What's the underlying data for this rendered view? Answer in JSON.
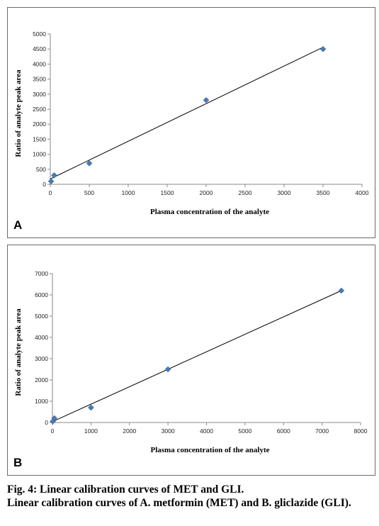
{
  "chart_data": [
    {
      "type": "scatter",
      "panel_label": "A",
      "xlabel": "Plasma concentration of the analyte",
      "ylabel": "Ratio of analyte peak area",
      "xlim": [
        0,
        4000
      ],
      "ylim": [
        0,
        5000
      ],
      "x_ticks": [
        0,
        500,
        1000,
        1500,
        2000,
        2500,
        3000,
        3500,
        4000
      ],
      "y_ticks": [
        0,
        500,
        1000,
        1500,
        2000,
        2500,
        3000,
        3500,
        4000,
        4500,
        5000
      ],
      "grid": false,
      "marker_color": "#4a7ab5",
      "series": [
        {
          "x": [
            10,
            50,
            500,
            2000,
            3500
          ],
          "y": [
            100,
            300,
            700,
            2800,
            4500
          ]
        }
      ],
      "trendline": {
        "x": [
          0,
          3500
        ],
        "y": [
          180,
          4560
        ]
      }
    },
    {
      "type": "scatter",
      "panel_label": "B",
      "xlabel": "Plasma concentration of the analyte",
      "ylabel": "Ratio of analyte peak area",
      "xlim": [
        0,
        8000
      ],
      "ylim": [
        0,
        7000
      ],
      "x_ticks": [
        0,
        1000,
        2000,
        3000,
        4000,
        5000,
        6000,
        7000,
        8000
      ],
      "y_ticks": [
        0,
        1000,
        2000,
        3000,
        4000,
        5000,
        6000,
        7000
      ],
      "grid": false,
      "marker_color": "#4a7ab5",
      "series": [
        {
          "x": [
            10,
            50,
            1000,
            3000,
            7500
          ],
          "y": [
            50,
            200,
            700,
            2500,
            6200
          ]
        }
      ],
      "trendline": {
        "x": [
          0,
          7500
        ],
        "y": [
          40,
          6200
        ]
      }
    }
  ],
  "caption": {
    "title": "Fig. 4: Linear calibration curves of MET and GLI.",
    "description": "Linear calibration curves of A. metformin (MET) and B. gliclazide (GLI)."
  }
}
